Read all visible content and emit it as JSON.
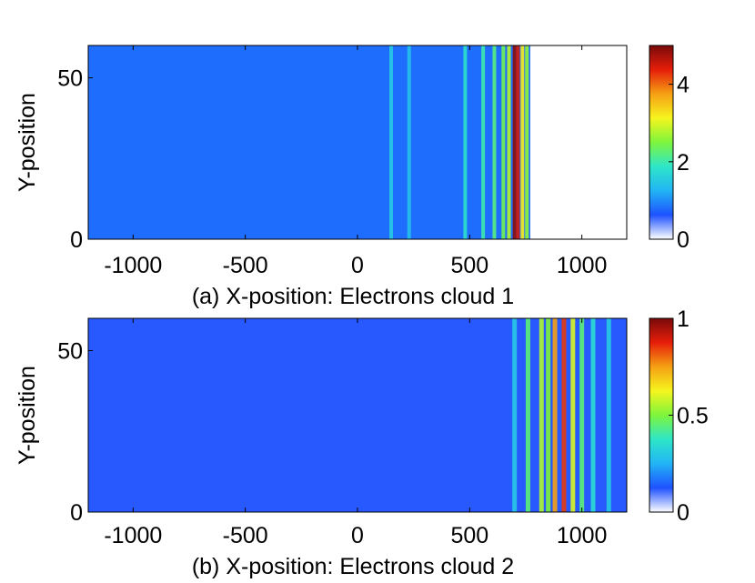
{
  "colormap": [
    "#ffffff",
    "#1e52ff",
    "#22b4f5",
    "#2ee6c8",
    "#7ef53c",
    "#f5f51e",
    "#f5a014",
    "#e61e0a",
    "#780a0a"
  ],
  "chart_data": [
    {
      "type": "heatmap",
      "title": "",
      "xlabel": "(a) X-position: Electrons cloud 1",
      "ylabel": "Y-position",
      "xlim": [
        -1200,
        1200
      ],
      "ylim": [
        0,
        60
      ],
      "xticks": [
        "-1000",
        "-500",
        "0",
        "500",
        "1000"
      ],
      "xtick_values": [
        -1000,
        -500,
        0,
        500,
        1000
      ],
      "yticks": [
        "0",
        "50"
      ],
      "ytick_values": [
        0,
        50
      ],
      "colorbar": {
        "range": [
          0,
          5
        ],
        "ticks": [
          "0",
          "2",
          "4"
        ],
        "tick_values": [
          0,
          2,
          4
        ]
      },
      "background_value": 0.8,
      "data_x_extent": [
        -1200,
        770
      ],
      "bands": [
        {
          "x": 150,
          "value": 1.5
        },
        {
          "x": 230,
          "value": 1.4
        },
        {
          "x": 480,
          "value": 1.8
        },
        {
          "x": 560,
          "value": 2.0
        },
        {
          "x": 610,
          "value": 2.2
        },
        {
          "x": 650,
          "value": 2.4
        },
        {
          "x": 675,
          "value": 2.8
        },
        {
          "x": 700,
          "value": 4.9
        },
        {
          "x": 715,
          "value": 4.5
        },
        {
          "x": 735,
          "value": 3.2
        },
        {
          "x": 755,
          "value": 2.6
        }
      ]
    },
    {
      "type": "heatmap",
      "title": "",
      "xlabel": "(b) X-position: Electrons cloud 2",
      "ylabel": "Y-position",
      "xlim": [
        -1200,
        1200
      ],
      "ylim": [
        0,
        60
      ],
      "xticks": [
        "-1000",
        "-500",
        "0",
        "500",
        "1000"
      ],
      "xtick_values": [
        -1000,
        -500,
        0,
        500,
        1000
      ],
      "yticks": [
        "0",
        "50"
      ],
      "ytick_values": [
        0,
        50
      ],
      "colorbar": {
        "range": [
          0,
          1
        ],
        "ticks": [
          "0",
          "0.5",
          "1"
        ],
        "tick_values": [
          0,
          0.5,
          1
        ]
      },
      "background_value": 0.12,
      "data_x_extent": [
        -1200,
        1200
      ],
      "bands": [
        {
          "x": 700,
          "value": 0.3
        },
        {
          "x": 760,
          "value": 0.45
        },
        {
          "x": 820,
          "value": 0.55
        },
        {
          "x": 850,
          "value": 0.5
        },
        {
          "x": 880,
          "value": 0.75
        },
        {
          "x": 920,
          "value": 0.85
        },
        {
          "x": 960,
          "value": 0.6
        },
        {
          "x": 1000,
          "value": 0.45
        },
        {
          "x": 1050,
          "value": 0.35
        },
        {
          "x": 1120,
          "value": 0.3
        }
      ]
    }
  ]
}
